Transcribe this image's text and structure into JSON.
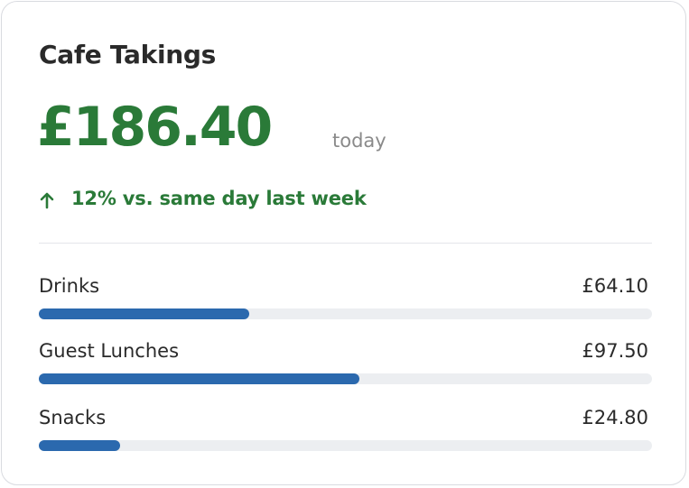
{
  "card": {
    "title": "Cafe Takings",
    "total": {
      "value": 186.4,
      "label": "£186.40"
    },
    "period": "today",
    "change": "12% vs. same day last week",
    "items": [
      {
        "name": "Drinks",
        "value": 64.1,
        "label": "£64.10"
      },
      {
        "name": "Guest Lunches",
        "value": 97.5,
        "label": "£97.50"
      },
      {
        "name": "Snacks",
        "value": 24.8,
        "label": "£24.80"
      }
    ]
  }
}
